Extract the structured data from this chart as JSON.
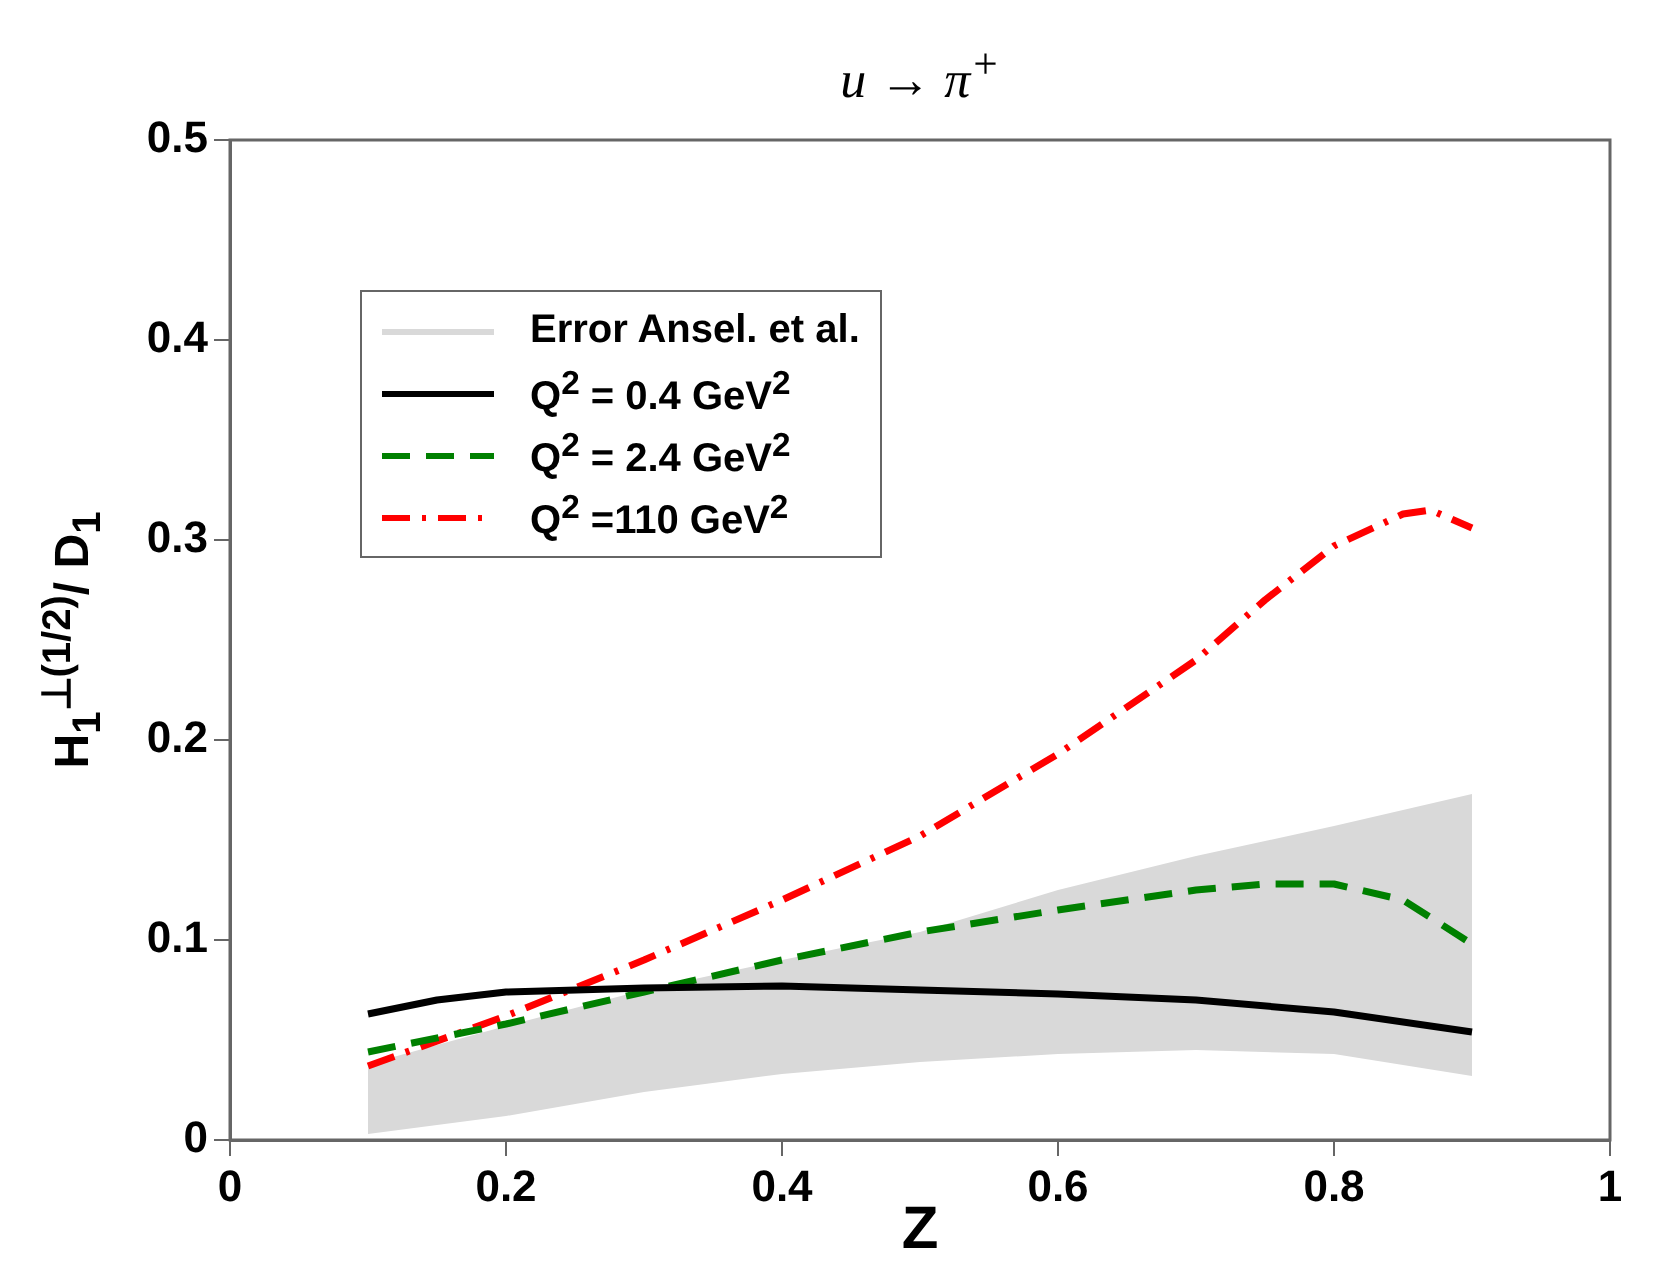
{
  "chart_data": {
    "type": "line",
    "title": "u → π$^{+}$",
    "xlabel": "Z",
    "ylabel": "H$_{1}$$^{⊥(1/2)}$/ D$_{1}$",
    "xlim": [
      0,
      1
    ],
    "xticks": [
      0,
      0.2,
      0.4,
      0.6,
      0.8,
      1
    ],
    "ylim": [
      0,
      0.5
    ],
    "yticks": [
      0,
      0.1,
      0.2,
      0.3,
      0.4,
      0.5
    ],
    "grid": false,
    "legend": "top left",
    "marker": "none",
    "series": [
      {
        "name": "Error Ansel. et al.",
        "type": "area",
        "color": "#d9d9d9",
        "x": [
          0.1,
          0.2,
          0.3,
          0.4,
          0.5,
          0.6,
          0.7,
          0.8,
          0.9
        ],
        "values": [
          null,
          null,
          null,
          null,
          null,
          null,
          null,
          null,
          null
        ],
        "lower": [
          0.003,
          0.012,
          0.024,
          0.033,
          0.039,
          0.043,
          0.045,
          0.043,
          0.032
        ],
        "upper": [
          0.038,
          0.057,
          0.075,
          0.09,
          0.104,
          0.125,
          0.142,
          0.157,
          0.173
        ]
      },
      {
        "name": "Q$^{2}$ = 0.4 GeV$^{2}$",
        "color": "#000000",
        "line_style": "solid",
        "x": [
          0.1,
          0.15,
          0.2,
          0.3,
          0.4,
          0.5,
          0.6,
          0.7,
          0.8,
          0.9
        ],
        "values": [
          0.063,
          0.07,
          0.074,
          0.076,
          0.077,
          0.075,
          0.073,
          0.07,
          0.064,
          0.054
        ]
      },
      {
        "name": "Q$^{2}$ = 2.4 GeV$^{2}$",
        "color": "#008000",
        "line_style": "dashed",
        "x": [
          0.1,
          0.2,
          0.3,
          0.4,
          0.5,
          0.6,
          0.7,
          0.75,
          0.8,
          0.85,
          0.9
        ],
        "values": [
          0.044,
          0.058,
          0.074,
          0.09,
          0.104,
          0.115,
          0.125,
          0.128,
          0.128,
          0.12,
          0.098
        ]
      },
      {
        "name": "Q$^{2}$ =110 GeV$^{2}$",
        "color": "#ff0000",
        "line_style": "dashdot",
        "x": [
          0.1,
          0.2,
          0.3,
          0.4,
          0.5,
          0.6,
          0.7,
          0.75,
          0.8,
          0.85,
          0.87,
          0.9
        ],
        "values": [
          0.037,
          0.062,
          0.09,
          0.12,
          0.152,
          0.193,
          0.24,
          0.27,
          0.297,
          0.313,
          0.315,
          0.306
        ]
      }
    ]
  }
}
